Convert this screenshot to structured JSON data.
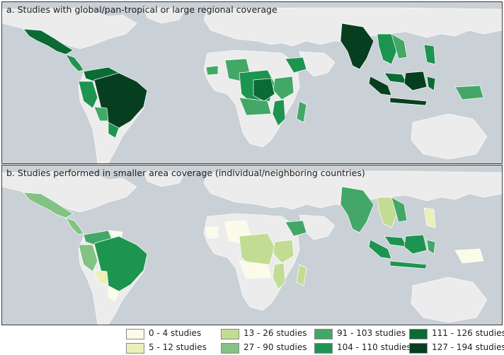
{
  "panels": {
    "a": {
      "title": "a. Studies with global/pan-tropical or large regional coverage"
    },
    "b": {
      "title": "b. Studies performed in smaller area coverage (individual/neighboring countries)"
    }
  },
  "colors": {
    "ocean": "#c9d0d6",
    "land": "#ececec",
    "border": "#ffffff"
  },
  "legend": [
    {
      "label": "0 - 4 studies",
      "color": "#fbfbe8"
    },
    {
      "label": "5 - 12 studies",
      "color": "#ecf0b6"
    },
    {
      "label": "13 - 26 studies",
      "color": "#c3dc93"
    },
    {
      "label": "27 - 90 studies",
      "color": "#82c383"
    },
    {
      "label": "91 - 103 studies",
      "color": "#43a767"
    },
    {
      "label": "104 - 110 studies",
      "color": "#1d9450"
    },
    {
      "label": "111 - 126 studies",
      "color": "#0a6b34"
    },
    {
      "label": "127 - 194 studies",
      "color": "#053f20"
    }
  ]
}
